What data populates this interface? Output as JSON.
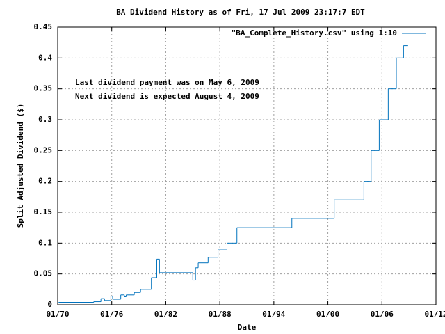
{
  "chart_data": {
    "type": "line",
    "style": "steps",
    "title": "BA Dividend History as of Fri, 17 Jul 2009 23:17:7 EDT",
    "x_label": "Date",
    "y_label": "Split Adjusted Dividend ($)",
    "annotations": [
      "Last dividend payment was on May 6, 2009",
      "Next dividend is expected August 4, 2009"
    ],
    "legend_position": "top-right",
    "grid": true,
    "xlim": [
      1970,
      2012
    ],
    "ylim": [
      0,
      0.45
    ],
    "xticks": [
      {
        "value": 1970,
        "label": "01/70"
      },
      {
        "value": 1976,
        "label": "01/76"
      },
      {
        "value": 1982,
        "label": "01/82"
      },
      {
        "value": 1988,
        "label": "01/88"
      },
      {
        "value": 1994,
        "label": "01/94"
      },
      {
        "value": 2000,
        "label": "01/00"
      },
      {
        "value": 2006,
        "label": "01/06"
      },
      {
        "value": 2012,
        "label": "01/12"
      }
    ],
    "yticks": [
      0,
      0.05,
      0.1,
      0.15,
      0.2,
      0.25,
      0.3,
      0.35,
      0.4,
      0.45
    ],
    "series": [
      {
        "name": "\"BA_Complete_History.csv\" using 1:10",
        "color": "#0072bd",
        "x": [
          1970.1,
          1974.0,
          1974.8,
          1975.2,
          1975.9,
          1976.1,
          1977.0,
          1977.4,
          1977.6,
          1978.5,
          1979.2,
          1980.4,
          1981.0,
          1981.3,
          1985.0,
          1985.3,
          1985.6,
          1986.7,
          1987.8,
          1988.8,
          1989.9,
          1996.0,
          2000.7,
          2004.0,
          2004.8,
          2005.7,
          2006.7,
          2007.6,
          2008.4,
          2008.9
        ],
        "values": [
          0.004,
          0.005,
          0.01,
          0.007,
          0.014,
          0.009,
          0.016,
          0.013,
          0.016,
          0.02,
          0.025,
          0.044,
          0.074,
          0.052,
          0.04,
          0.06,
          0.068,
          0.077,
          0.089,
          0.1,
          0.125,
          0.14,
          0.17,
          0.2,
          0.25,
          0.3,
          0.35,
          0.4,
          0.42,
          0.42
        ]
      }
    ]
  }
}
